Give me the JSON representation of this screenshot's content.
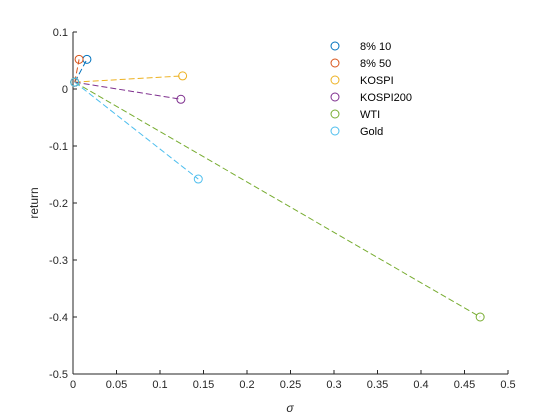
{
  "chart_data": {
    "type": "scatter",
    "title": "",
    "xlabel": "σ",
    "ylabel": "return",
    "xlim": [
      0,
      0.5
    ],
    "ylim": [
      -0.5,
      0.1
    ],
    "xticks": [
      "0",
      "0.05",
      "0.1",
      "0.15",
      "0.2",
      "0.25",
      "0.3",
      "0.35",
      "0.4",
      "0.45",
      "0.5"
    ],
    "yticks": [
      "0.1",
      "0",
      "-0.1",
      "-0.2",
      "-0.3",
      "-0.4",
      "-0.5"
    ],
    "grid": false,
    "legend_position": "top-right",
    "series": [
      {
        "name": "8% 10",
        "color": "#0072BD",
        "points": [
          [
            0.002,
            0.012
          ],
          [
            0.016,
            0.052
          ]
        ]
      },
      {
        "name": "8% 50",
        "color": "#D95319",
        "points": [
          [
            0.002,
            0.012
          ],
          [
            0.007,
            0.052
          ]
        ]
      },
      {
        "name": "KOSPI",
        "color": "#EDB120",
        "points": [
          [
            0.002,
            0.012
          ],
          [
            0.126,
            0.023
          ]
        ]
      },
      {
        "name": "KOSPI200",
        "color": "#7E2F8E",
        "points": [
          [
            0.002,
            0.012
          ],
          [
            0.124,
            -0.018
          ]
        ]
      },
      {
        "name": "WTI",
        "color": "#77AC30",
        "points": [
          [
            0.002,
            0.012
          ],
          [
            0.468,
            -0.4
          ]
        ]
      },
      {
        "name": "Gold",
        "color": "#4DBEEE",
        "points": [
          [
            0.002,
            0.012
          ],
          [
            0.144,
            -0.158
          ]
        ]
      }
    ]
  }
}
